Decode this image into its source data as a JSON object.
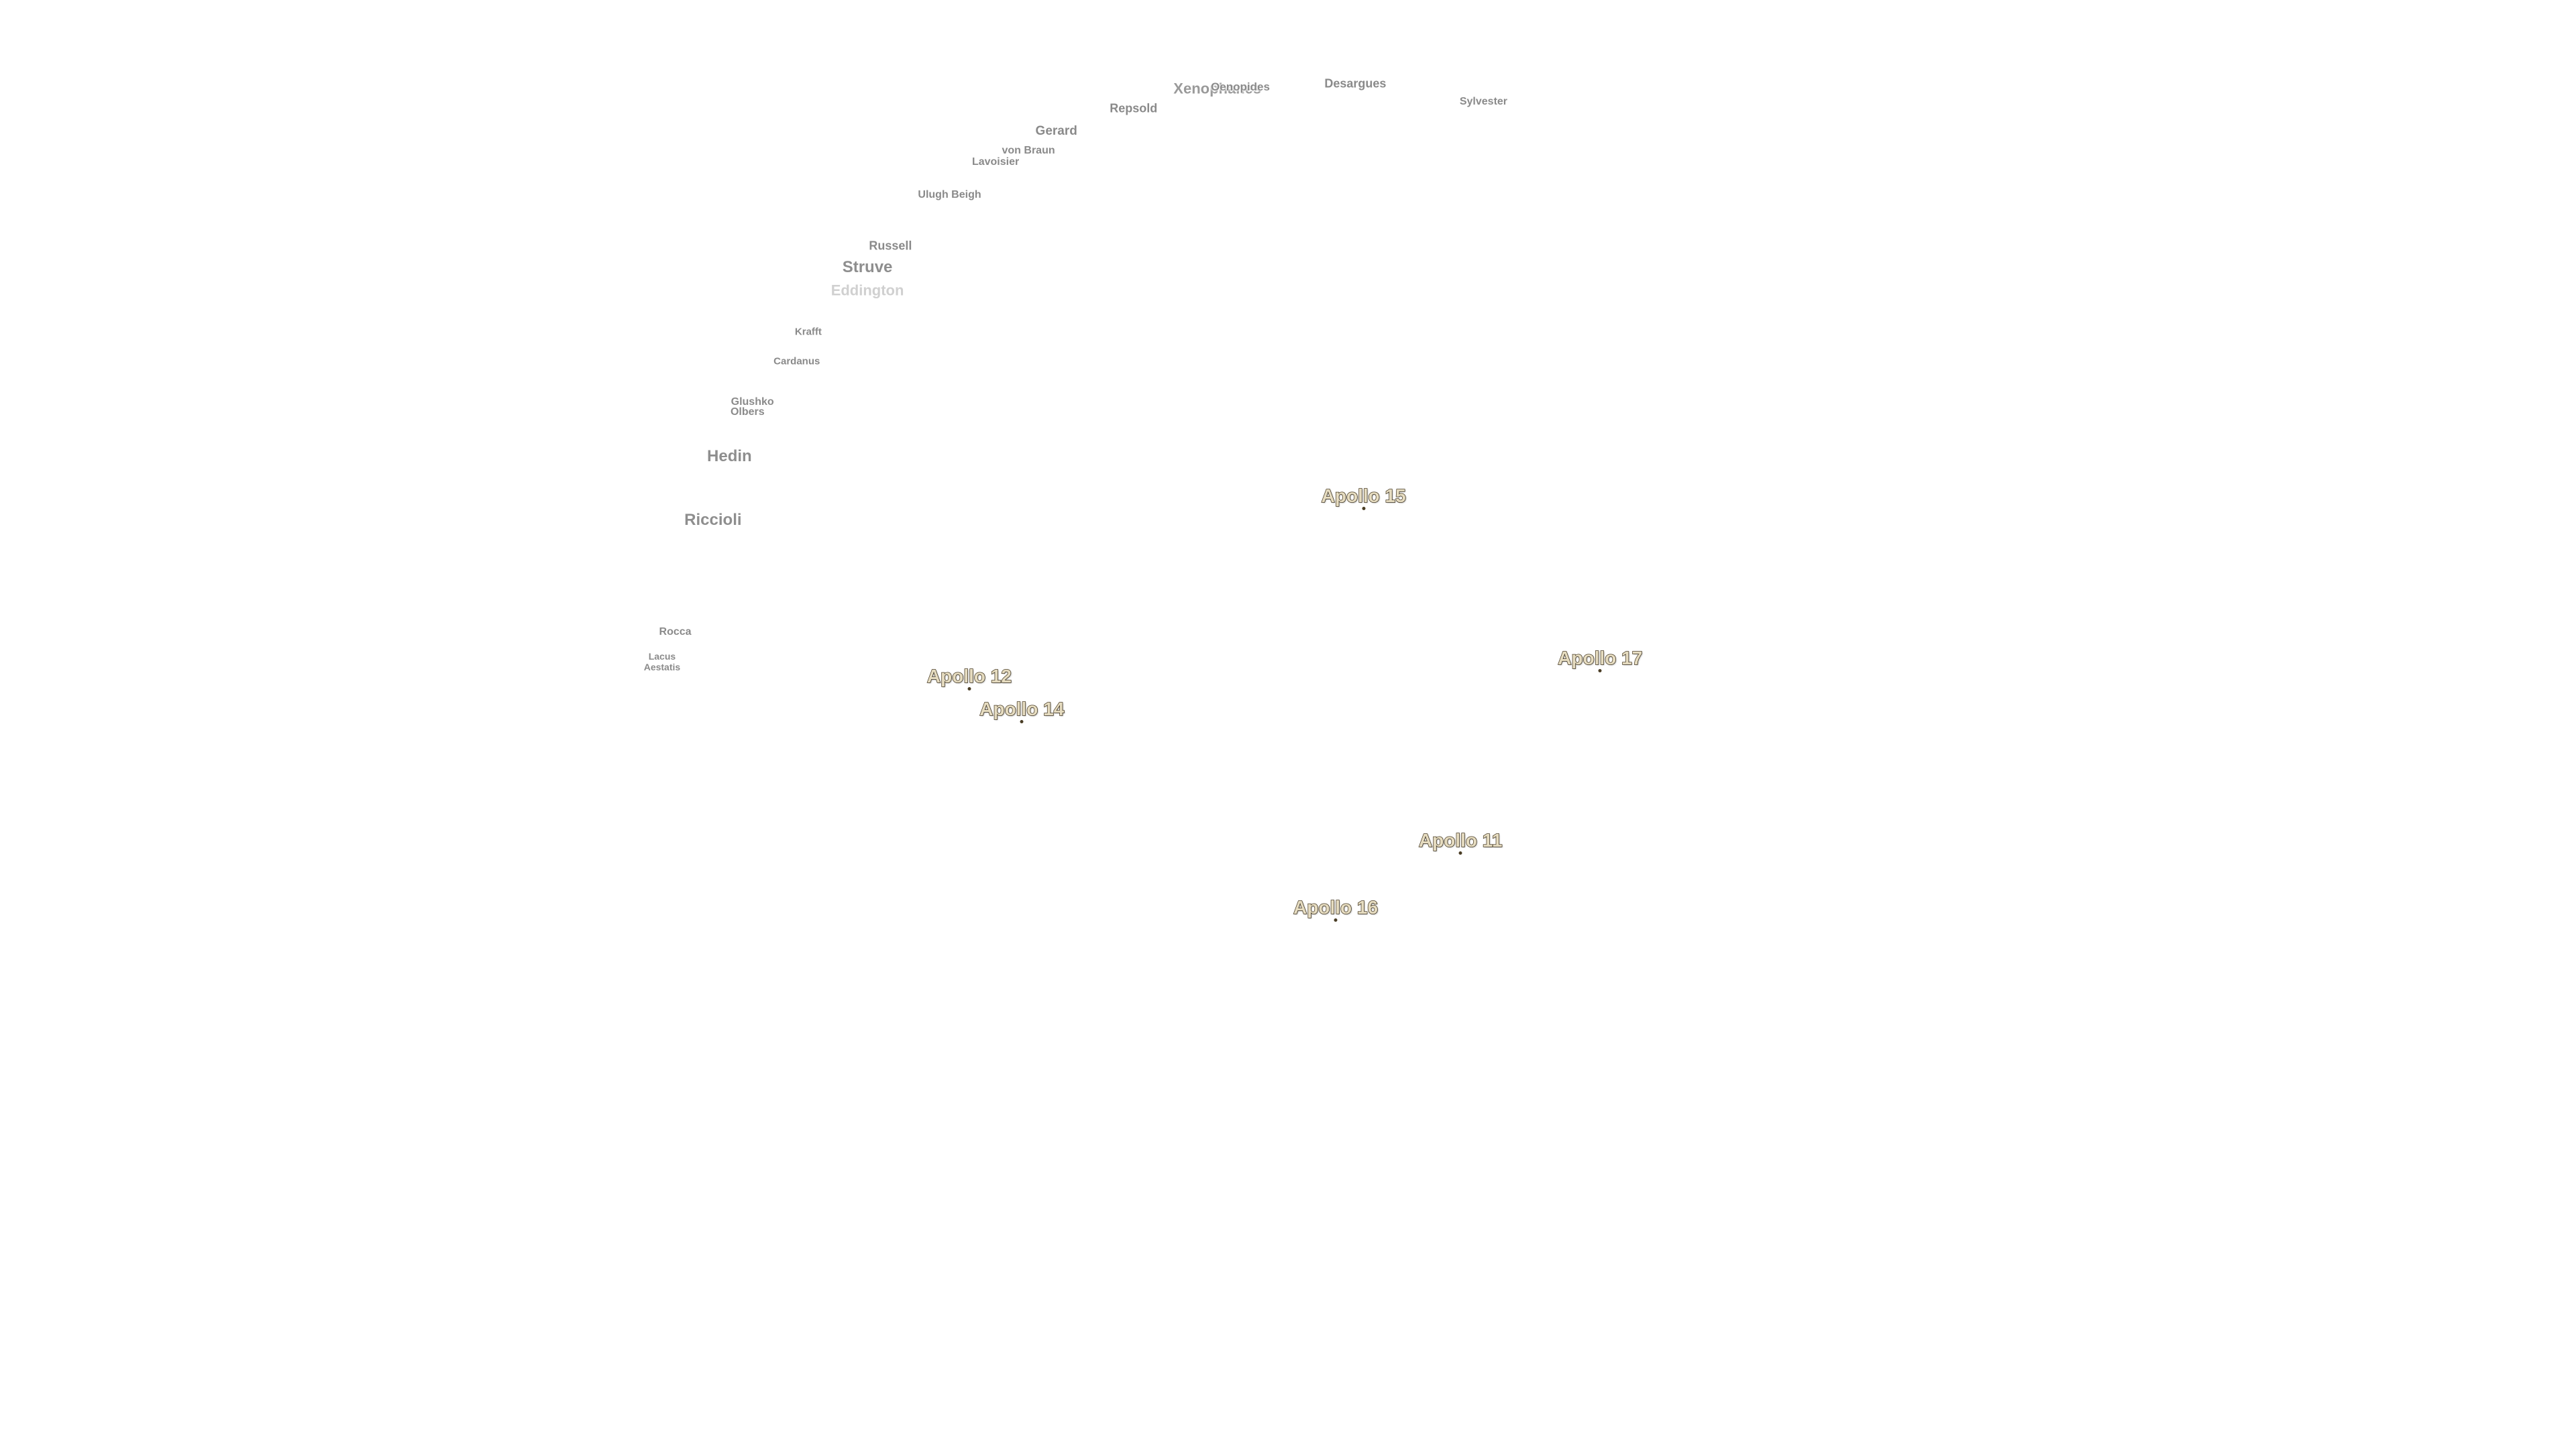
{
  "craters": [
    "Xenophanes",
    "Oenopides",
    "Desargues",
    "Sylvester",
    "Repsold",
    "Gerard",
    "von Braun",
    "Lavoisier",
    "Ulugh Beigh",
    "Russell",
    "Struve",
    "Eddington",
    "Krafft",
    "Cardanus",
    "Glushko",
    "Olbers",
    "Hedin",
    "Riccioli",
    "Rocca",
    "Lacus Aestatis"
  ],
  "landing_sites": [
    "Apollo 15",
    "Apollo 17",
    "Apollo 12",
    "Apollo 14",
    "Apollo 11",
    "Apollo 16"
  ]
}
